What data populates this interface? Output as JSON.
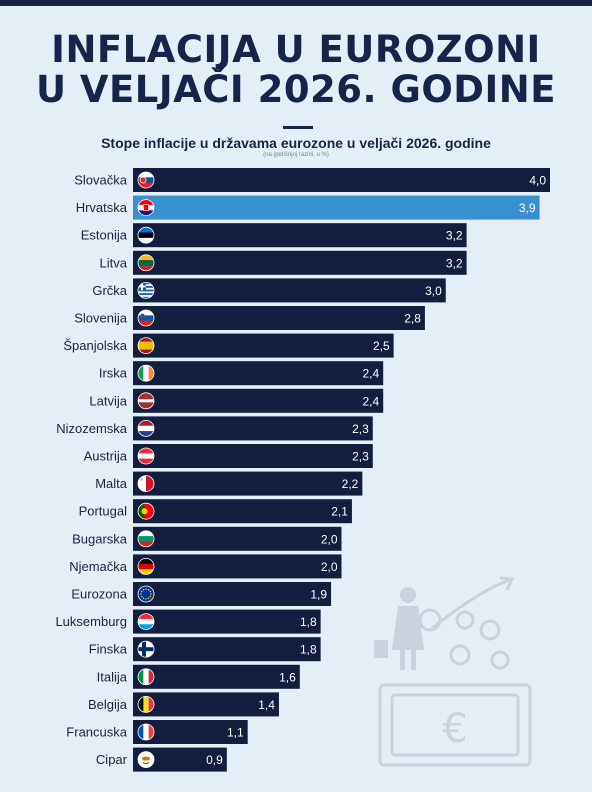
{
  "header": {
    "title_line1": "INFLACIJA U EUROZONI",
    "title_line2": "U VELJAČI 2026. GODINE"
  },
  "colors": {
    "bar": "#131d3d",
    "highlight": "#3a8fcf",
    "background": "#e4eef6",
    "text": "#16244a"
  },
  "chart_data": {
    "type": "bar",
    "orientation": "horizontal",
    "title": "Stope inflacije u državama eurozone u veljači 2026. godine",
    "subtitle": "(na godišnjoj razini, u %)",
    "xlabel": "",
    "ylabel": "",
    "xlim": [
      0,
      4
    ],
    "grid": false,
    "highlight_category": "Hrvatska",
    "categories": [
      "Slovačka",
      "Hrvatska",
      "Estonija",
      "Litva",
      "Grčka",
      "Slovenija",
      "Španjolska",
      "Irska",
      "Latvija",
      "Nizozemska",
      "Austrija",
      "Malta",
      "Portugal",
      "Bugarska",
      "Njemačka",
      "Eurozona",
      "Luksemburg",
      "Finska",
      "Italija",
      "Belgija",
      "Francuska",
      "Cipar"
    ],
    "values": [
      4.0,
      3.9,
      3.2,
      3.2,
      3.0,
      2.8,
      2.5,
      2.4,
      2.4,
      2.3,
      2.3,
      2.2,
      2.1,
      2.0,
      2.0,
      1.9,
      1.8,
      1.8,
      1.6,
      1.4,
      1.1,
      0.9
    ],
    "value_labels": [
      "4,0",
      "3,9",
      "3,2",
      "3,2",
      "3,0",
      "2,8",
      "2,5",
      "2,4",
      "2,4",
      "2,3",
      "2,3",
      "2,2",
      "2,1",
      "2,0",
      "2,0",
      "1,9",
      "1,8",
      "1,8",
      "1,6",
      "1,4",
      "1,1",
      "0,9"
    ],
    "flags": [
      "slovakia-flag-icon",
      "croatia-flag-icon",
      "estonia-flag-icon",
      "lithuania-flag-icon",
      "greece-flag-icon",
      "slovenia-flag-icon",
      "spain-flag-icon",
      "ireland-flag-icon",
      "latvia-flag-icon",
      "netherlands-flag-icon",
      "austria-flag-icon",
      "malta-flag-icon",
      "portugal-flag-icon",
      "bulgaria-flag-icon",
      "germany-flag-icon",
      "eu-flag-icon",
      "luxembourg-flag-icon",
      "finland-flag-icon",
      "italy-flag-icon",
      "belgium-flag-icon",
      "france-flag-icon",
      "cyprus-flag-icon"
    ]
  }
}
